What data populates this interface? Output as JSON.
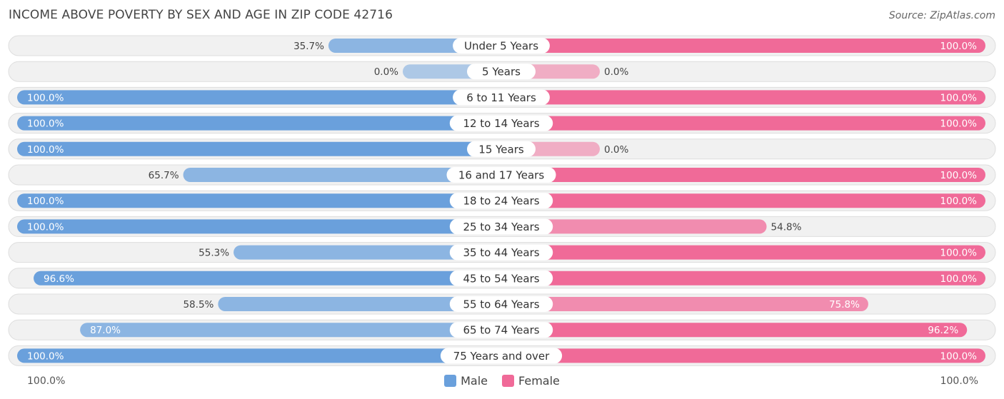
{
  "title": "INCOME ABOVE POVERTY BY SEX AND AGE IN ZIP CODE 42716",
  "source": "Source: ZipAtlas.com",
  "axis": {
    "left_label": "100.0%",
    "right_label": "100.0%"
  },
  "legend": {
    "male": {
      "label": "Male",
      "color": "#6aa0dc"
    },
    "female": {
      "label": "Female",
      "color": "#f06a98"
    }
  },
  "chart_data": {
    "type": "bar",
    "orientation": "horizontal-diverging",
    "categories": [
      "Under 5 Years",
      "5 Years",
      "6 to 11 Years",
      "12 to 14 Years",
      "15 Years",
      "16 and 17 Years",
      "18 to 24 Years",
      "25 to 34 Years",
      "35 to 44 Years",
      "45 to 54 Years",
      "55 to 64 Years",
      "65 to 74 Years",
      "75 Years and over"
    ],
    "series": [
      {
        "name": "Male",
        "values": [
          35.7,
          0.0,
          100.0,
          100.0,
          100.0,
          65.7,
          100.0,
          100.0,
          55.3,
          96.6,
          58.5,
          87.0,
          100.0
        ],
        "labels": [
          "35.7%",
          "0.0%",
          "100.0%",
          "100.0%",
          "100.0%",
          "65.7%",
          "100.0%",
          "100.0%",
          "55.3%",
          "96.6%",
          "58.5%",
          "87.0%",
          "100.0%"
        ]
      },
      {
        "name": "Female",
        "values": [
          100.0,
          0.0,
          100.0,
          100.0,
          0.0,
          100.0,
          100.0,
          54.8,
          100.0,
          100.0,
          75.8,
          96.2,
          100.0
        ],
        "labels": [
          "100.0%",
          "0.0%",
          "100.0%",
          "100.0%",
          "0.0%",
          "100.0%",
          "100.0%",
          "54.8%",
          "100.0%",
          "100.0%",
          "75.8%",
          "96.2%",
          "100.0%"
        ]
      }
    ],
    "xlim": [
      0,
      100
    ],
    "legend_position": "bottom-center"
  }
}
